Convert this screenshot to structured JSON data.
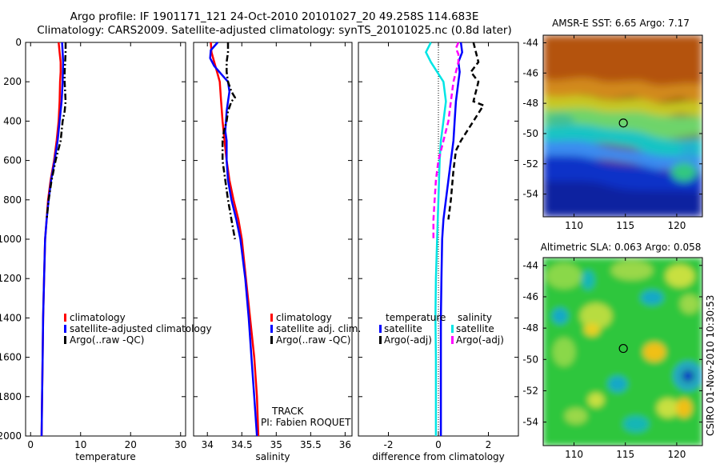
{
  "page": {
    "title_line1": "Argo profile: IF 1901171_121 24-Oct-2010 20101027_20 49.258S 114.683E",
    "title_line2": "Climatology: CARS2009. Satellite-adjusted climatology: synTS_20101025.nc (0.8d later)",
    "side_label": "CSIRO 01-Nov-2010 10:30:53",
    "track_label": "TRACK",
    "pi_label": "PI: Fabien ROQUET",
    "sst_title": "AMSR-E SST: 6.65 Argo: 7.17",
    "sla_title": "Altimetric SLA: 0.063 Argo: 0.058"
  },
  "colors": {
    "climatology": "#ff0000",
    "satellite": "#0000ff",
    "argo": "#000000",
    "sal_satellite": "#00e5e5",
    "sal_argo": "#ff00ff"
  },
  "chart_data": [
    {
      "type": "line",
      "xlabel": "temperature",
      "ylim": [
        2000,
        0
      ],
      "xlim": [
        -1,
        31
      ],
      "xticks": [
        0,
        10,
        20,
        30
      ],
      "yticks": [
        0,
        200,
        400,
        600,
        800,
        1000,
        1200,
        1400,
        1600,
        1800,
        2000
      ],
      "legend": [
        "climatology",
        "satellite-adjusted climatology",
        "Argo(..raw -QC)"
      ],
      "series": [
        {
          "name": "climatology",
          "color": "#ff0000",
          "style": "solid",
          "points": [
            [
              5.6,
              0
            ],
            [
              5.8,
              50
            ],
            [
              6.0,
              100
            ],
            [
              6.0,
              150
            ],
            [
              5.9,
              200
            ],
            [
              5.8,
              300
            ],
            [
              5.6,
              400
            ],
            [
              5.2,
              500
            ],
            [
              4.7,
              600
            ],
            [
              4.0,
              700
            ],
            [
              3.5,
              800
            ],
            [
              3.2,
              900
            ],
            [
              2.9,
              1000
            ],
            [
              2.7,
              1200
            ],
            [
              2.5,
              1400
            ],
            [
              2.4,
              1600
            ],
            [
              2.3,
              1800
            ],
            [
              2.2,
              2000
            ]
          ]
        },
        {
          "name": "satellite-adjusted climatology",
          "color": "#0000ff",
          "style": "solid",
          "points": [
            [
              6.3,
              0
            ],
            [
              6.4,
              50
            ],
            [
              6.5,
              100
            ],
            [
              6.4,
              200
            ],
            [
              6.2,
              300
            ],
            [
              5.8,
              400
            ],
            [
              5.4,
              500
            ],
            [
              4.8,
              600
            ],
            [
              4.1,
              700
            ],
            [
              3.6,
              800
            ],
            [
              3.2,
              900
            ],
            [
              2.9,
              1000
            ],
            [
              2.7,
              1200
            ],
            [
              2.5,
              1400
            ],
            [
              2.4,
              1600
            ],
            [
              2.3,
              1800
            ],
            [
              2.2,
              2000
            ]
          ]
        },
        {
          "name": "Argo(..raw -QC)",
          "color": "#000000",
          "style": "dashdot",
          "points": [
            [
              7.0,
              0
            ],
            [
              7.0,
              50
            ],
            [
              6.9,
              100
            ],
            [
              6.8,
              150
            ],
            [
              6.8,
              200
            ],
            [
              7.0,
              300
            ],
            [
              6.8,
              350
            ],
            [
              6.4,
              400
            ],
            [
              6.0,
              500
            ],
            [
              5.0,
              600
            ],
            [
              4.2,
              700
            ],
            [
              3.6,
              800
            ],
            [
              3.2,
              900
            ]
          ]
        }
      ]
    },
    {
      "type": "line",
      "xlabel": "salinity",
      "ylim": [
        2000,
        0
      ],
      "xlim": [
        33.8,
        36.1
      ],
      "xticks": [
        34,
        34.5,
        35,
        35.5,
        36
      ],
      "legend": [
        "climatology",
        "satellite adj. clim.",
        "Argo(..raw -QC)"
      ],
      "series": [
        {
          "name": "climatology",
          "color": "#ff0000",
          "style": "solid",
          "points": [
            [
              34.05,
              0
            ],
            [
              34.06,
              50
            ],
            [
              34.1,
              100
            ],
            [
              34.14,
              150
            ],
            [
              34.18,
              200
            ],
            [
              34.2,
              300
            ],
            [
              34.22,
              400
            ],
            [
              34.25,
              500
            ],
            [
              34.28,
              600
            ],
            [
              34.32,
              700
            ],
            [
              34.38,
              800
            ],
            [
              34.45,
              900
            ],
            [
              34.5,
              1000
            ],
            [
              34.56,
              1200
            ],
            [
              34.62,
              1400
            ],
            [
              34.68,
              1600
            ],
            [
              34.72,
              1800
            ],
            [
              34.74,
              2000
            ]
          ]
        },
        {
          "name": "satellite adj. clim.",
          "color": "#0000ff",
          "style": "solid",
          "points": [
            [
              34.15,
              0
            ],
            [
              34.05,
              40
            ],
            [
              34.04,
              80
            ],
            [
              34.1,
              120
            ],
            [
              34.2,
              160
            ],
            [
              34.3,
              200
            ],
            [
              34.32,
              250
            ],
            [
              34.3,
              300
            ],
            [
              34.28,
              350
            ],
            [
              34.27,
              400
            ],
            [
              34.26,
              450
            ],
            [
              34.28,
              500
            ],
            [
              34.28,
              600
            ],
            [
              34.3,
              700
            ],
            [
              34.35,
              800
            ],
            [
              34.42,
              900
            ],
            [
              34.48,
              1000
            ],
            [
              34.55,
              1200
            ],
            [
              34.6,
              1400
            ],
            [
              34.64,
              1600
            ],
            [
              34.68,
              1800
            ],
            [
              34.72,
              2000
            ]
          ]
        },
        {
          "name": "Argo(..raw -QC)",
          "color": "#000000",
          "style": "dashdot",
          "points": [
            [
              34.3,
              0
            ],
            [
              34.3,
              50
            ],
            [
              34.28,
              100
            ],
            [
              34.28,
              150
            ],
            [
              34.3,
              200
            ],
            [
              34.35,
              250
            ],
            [
              34.4,
              280
            ],
            [
              34.35,
              300
            ],
            [
              34.3,
              350
            ],
            [
              34.28,
              400
            ],
            [
              34.24,
              450
            ],
            [
              34.22,
              500
            ],
            [
              34.22,
              550
            ],
            [
              34.22,
              600
            ],
            [
              34.26,
              700
            ],
            [
              34.3,
              800
            ],
            [
              34.35,
              900
            ],
            [
              34.4,
              1000
            ]
          ]
        }
      ]
    },
    {
      "type": "line",
      "xlabel": "difference from climatology",
      "ylim": [
        2000,
        0
      ],
      "xlim": [
        -3.2,
        3.2
      ],
      "xticks": [
        -2,
        0,
        2
      ],
      "legend": [
        "temperature",
        "satellite",
        "Argo(-adj)",
        "salinity",
        "satellite",
        "Argo(-adj)"
      ],
      "series": [
        {
          "name": "temperature satellite",
          "color": "#0000ff",
          "style": "solid",
          "points": [
            [
              0.9,
              0
            ],
            [
              0.95,
              50
            ],
            [
              0.8,
              100
            ],
            [
              0.85,
              150
            ],
            [
              0.8,
              200
            ],
            [
              0.7,
              300
            ],
            [
              0.65,
              400
            ],
            [
              0.6,
              500
            ],
            [
              0.5,
              600
            ],
            [
              0.4,
              700
            ],
            [
              0.3,
              800
            ],
            [
              0.2,
              900
            ],
            [
              0.15,
              1000
            ],
            [
              0.12,
              1200
            ],
            [
              0.1,
              1400
            ],
            [
              0.1,
              1600
            ],
            [
              0.1,
              1800
            ],
            [
              0.1,
              2000
            ]
          ]
        },
        {
          "name": "temperature Argo(-adj)",
          "color": "#000000",
          "style": "dashed",
          "points": [
            [
              1.4,
              0
            ],
            [
              1.6,
              100
            ],
            [
              1.3,
              150
            ],
            [
              1.6,
              200
            ],
            [
              1.4,
              300
            ],
            [
              1.8,
              320
            ],
            [
              1.4,
              400
            ],
            [
              0.9,
              500
            ],
            [
              0.7,
              550
            ],
            [
              0.6,
              650
            ],
            [
              0.5,
              800
            ],
            [
              0.4,
              900
            ]
          ]
        },
        {
          "name": "salinity satellite",
          "color": "#00e5e5",
          "style": "solid",
          "points": [
            [
              -0.3,
              0
            ],
            [
              -0.5,
              50
            ],
            [
              -0.3,
              100
            ],
            [
              0.2,
              200
            ],
            [
              0.3,
              300
            ],
            [
              0.2,
              400
            ],
            [
              0.1,
              500
            ],
            [
              0.05,
              600
            ],
            [
              0.0,
              800
            ],
            [
              -0.05,
              1000
            ],
            [
              -0.1,
              1200
            ],
            [
              -0.12,
              1400
            ],
            [
              -0.1,
              1600
            ],
            [
              -0.1,
              1800
            ],
            [
              -0.1,
              2000
            ]
          ]
        },
        {
          "name": "salinity Argo(-adj)",
          "color": "#ff00ff",
          "style": "dashed",
          "points": [
            [
              0.8,
              0
            ],
            [
              0.7,
              30
            ],
            [
              0.8,
              60
            ],
            [
              0.8,
              100
            ],
            [
              0.6,
              200
            ],
            [
              0.5,
              300
            ],
            [
              0.4,
              400
            ],
            [
              0.2,
              500
            ],
            [
              0.0,
              600
            ],
            [
              -0.1,
              700
            ],
            [
              -0.15,
              800
            ],
            [
              -0.2,
              900
            ],
            [
              -0.2,
              1000
            ]
          ]
        }
      ]
    },
    {
      "type": "heatmap",
      "title": "AMSR-E SST: 6.65 Argo: 7.17",
      "xlim": [
        107,
        122.5
      ],
      "ylim": [
        -55.5,
        -43.5
      ],
      "xticks": [
        110,
        115,
        120
      ],
      "yticks": [
        -44,
        -46,
        -48,
        -50,
        -52,
        -54
      ],
      "marker": [
        114.8,
        -49.3
      ]
    },
    {
      "type": "heatmap",
      "title": "Altimetric SLA: 0.063 Argo: 0.058",
      "xlim": [
        107,
        122.5
      ],
      "ylim": [
        -55.5,
        -43.5
      ],
      "xticks": [
        110,
        115,
        120
      ],
      "yticks": [
        -44,
        -46,
        -48,
        -50,
        -52,
        -54
      ],
      "marker": [
        114.8,
        -49.3
      ]
    }
  ]
}
